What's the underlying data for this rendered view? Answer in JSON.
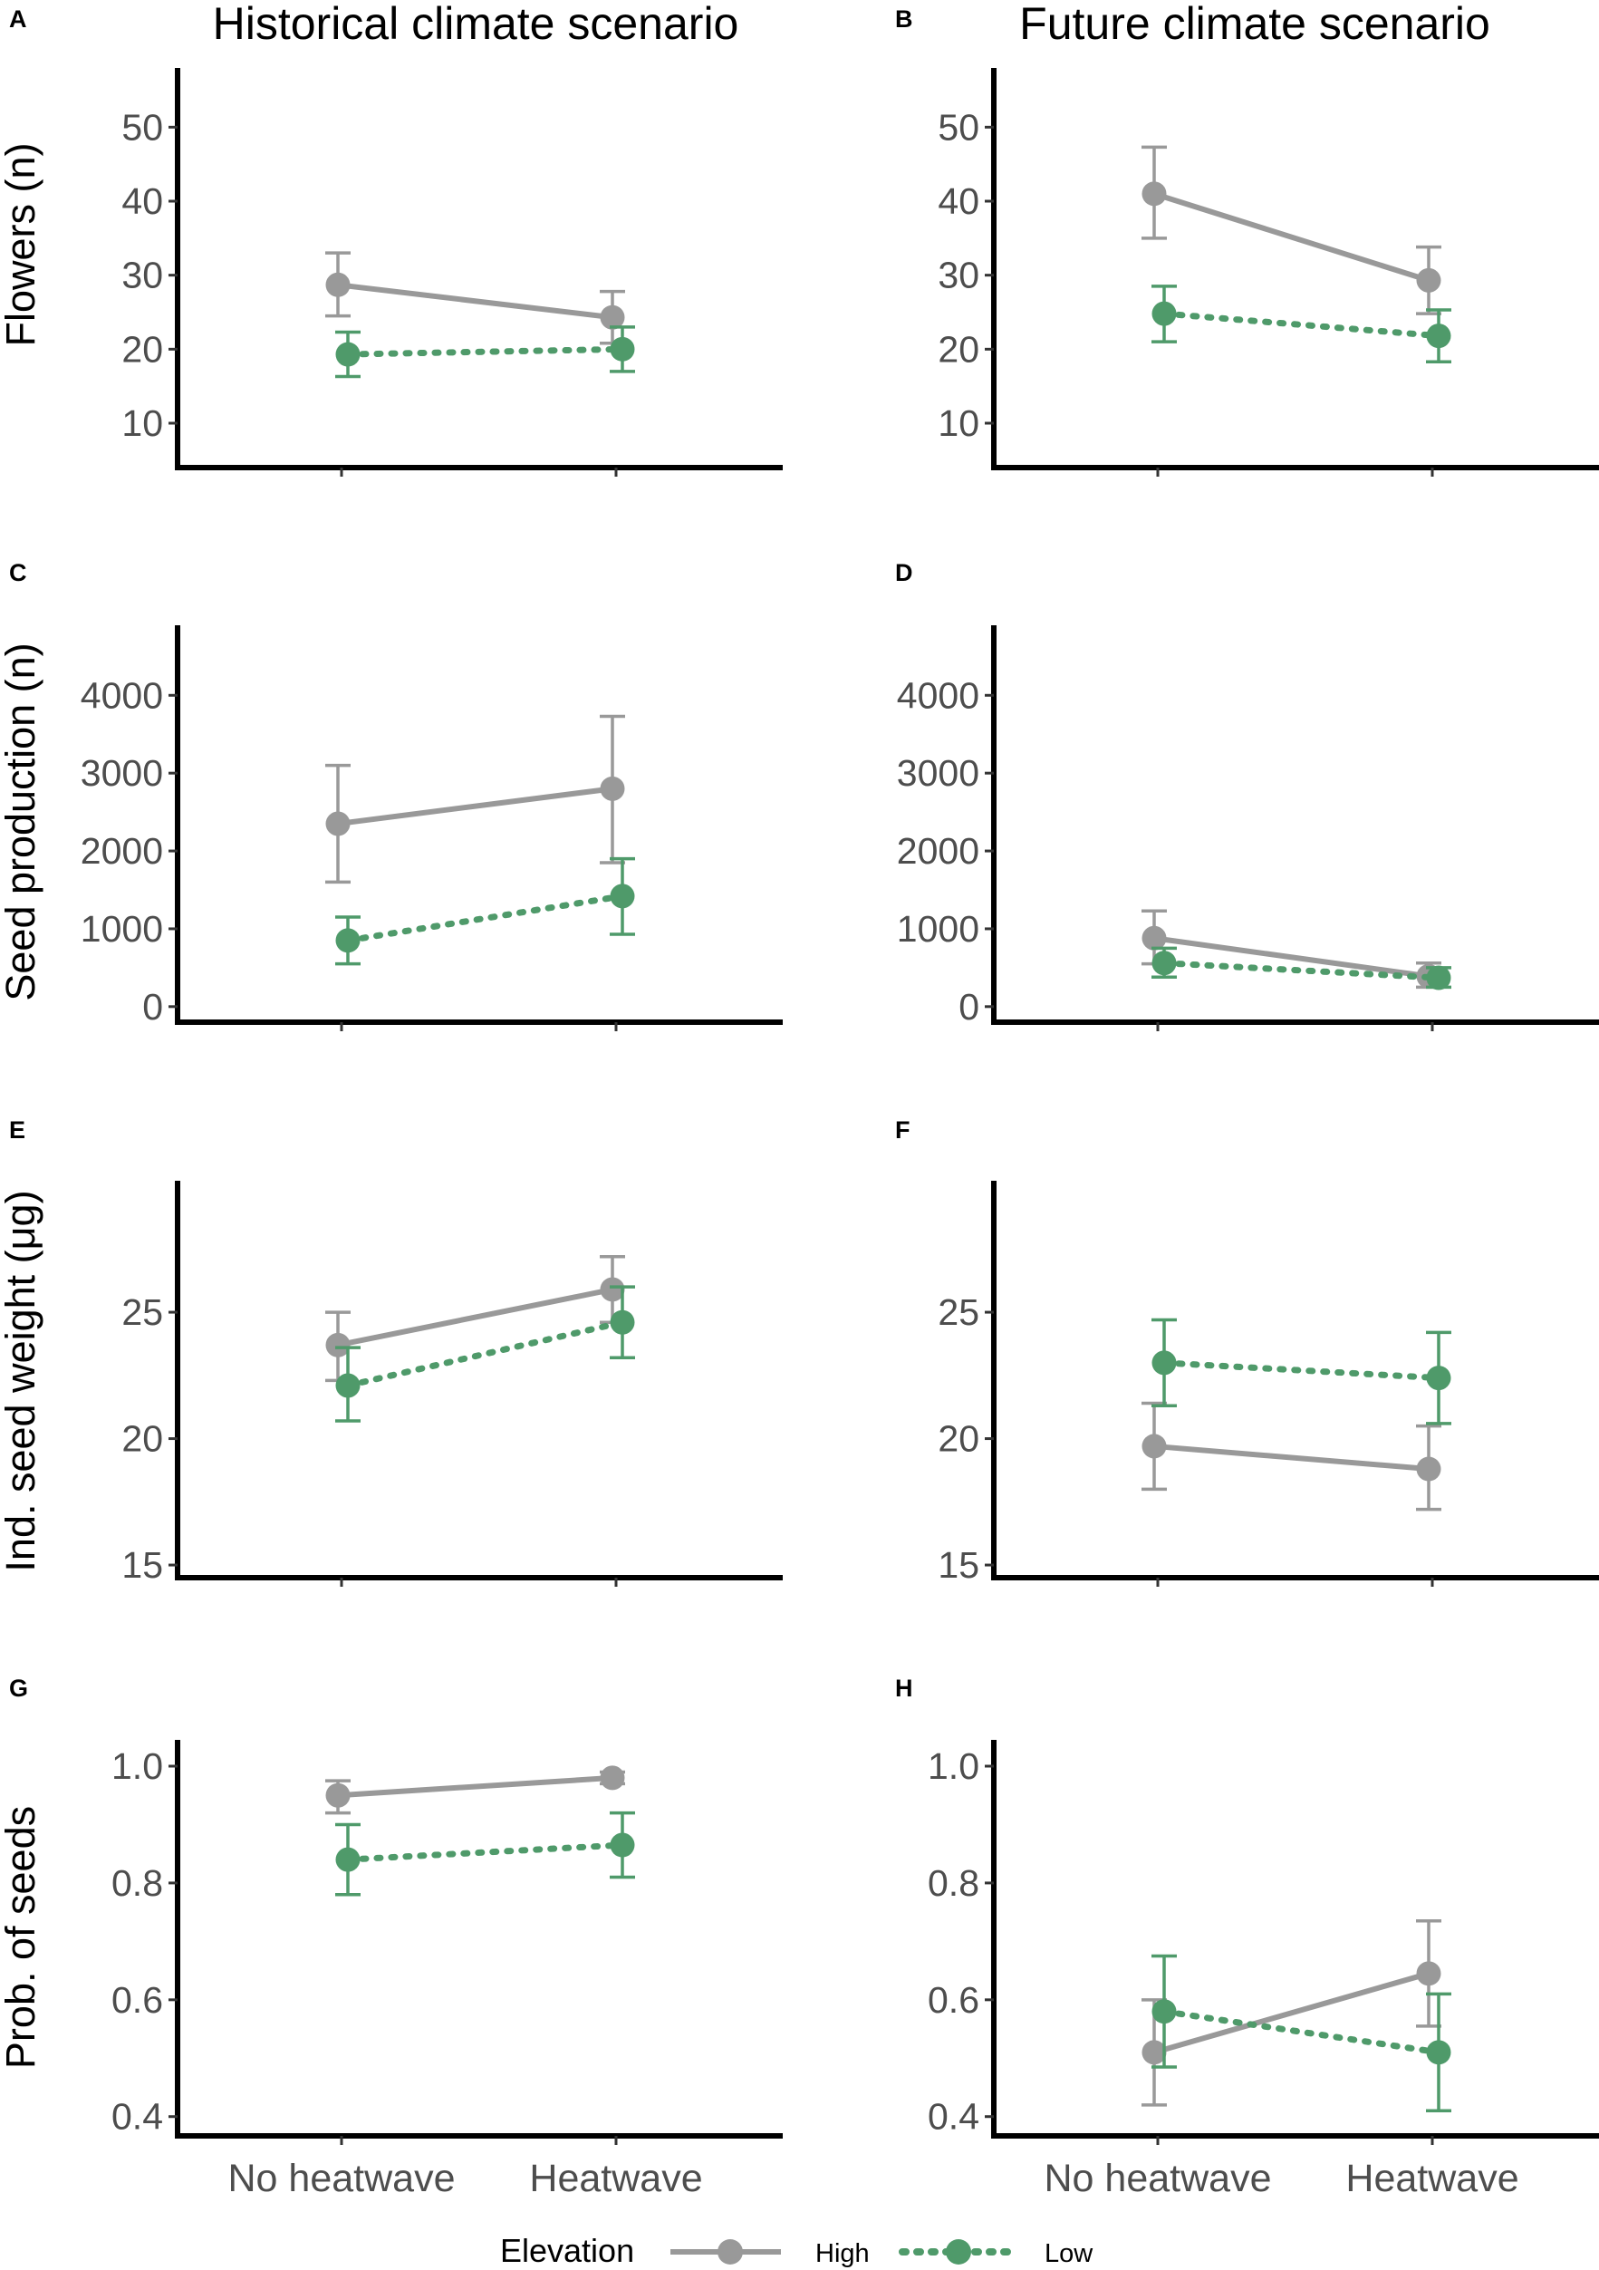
{
  "column_titles": [
    "Historical climate scenario",
    "Future climate scenario"
  ],
  "legend": {
    "title": "Elevation",
    "entries": [
      {
        "name": "High",
        "color": "#999999",
        "style": "solid"
      },
      {
        "name": "Low",
        "color": "#4f9a6a",
        "style": "dotted"
      }
    ]
  },
  "chart_data": [
    {
      "panel": "A",
      "type": "line",
      "title": "Historical climate scenario",
      "xlabel": "",
      "ylabel": "Flowers (n)",
      "categories": [
        "No heatwave",
        "Heatwave"
      ],
      "ylim": [
        4,
        58
      ],
      "yticks": [
        10,
        20,
        30,
        40,
        50
      ],
      "ytick_labels": [
        "10",
        "20",
        "30",
        "40",
        "50"
      ],
      "series": [
        {
          "name": "High",
          "values": [
            28.7,
            24.3
          ],
          "lower": [
            24.5,
            20.8
          ],
          "upper": [
            33.0,
            27.8
          ]
        },
        {
          "name": "Low",
          "values": [
            19.3,
            20.0
          ],
          "lower": [
            16.3,
            17.0
          ],
          "upper": [
            22.3,
            23.0
          ]
        }
      ]
    },
    {
      "panel": "B",
      "type": "line",
      "title": "Future climate scenario",
      "xlabel": "",
      "ylabel": "",
      "categories": [
        "No heatwave",
        "Heatwave"
      ],
      "ylim": [
        4,
        58
      ],
      "yticks": [
        10,
        20,
        30,
        40,
        50
      ],
      "ytick_labels": [
        "10",
        "20",
        "30",
        "40",
        "50"
      ],
      "series": [
        {
          "name": "High",
          "values": [
            41.0,
            29.3
          ],
          "lower": [
            35.0,
            24.8
          ],
          "upper": [
            47.3,
            33.8
          ]
        },
        {
          "name": "Low",
          "values": [
            24.8,
            21.8
          ],
          "lower": [
            21.0,
            18.3
          ],
          "upper": [
            28.5,
            25.3
          ]
        }
      ]
    },
    {
      "panel": "C",
      "type": "line",
      "title": "",
      "xlabel": "",
      "ylabel": "Seed production (n)",
      "categories": [
        "No heatwave",
        "Heatwave"
      ],
      "ylim": [
        -200,
        4900
      ],
      "yticks": [
        0,
        1000,
        2000,
        3000,
        4000
      ],
      "ytick_labels": [
        "0",
        "1000",
        "2000",
        "3000",
        "4000"
      ],
      "series": [
        {
          "name": "High",
          "values": [
            2350,
            2800
          ],
          "lower": [
            1600,
            1850
          ],
          "upper": [
            3100,
            3730
          ]
        },
        {
          "name": "Low",
          "values": [
            850,
            1420
          ],
          "lower": [
            550,
            930
          ],
          "upper": [
            1150,
            1900
          ]
        }
      ]
    },
    {
      "panel": "D",
      "type": "line",
      "title": "",
      "xlabel": "",
      "ylabel": "",
      "categories": [
        "No heatwave",
        "Heatwave"
      ],
      "ylim": [
        -200,
        4900
      ],
      "yticks": [
        0,
        1000,
        2000,
        3000,
        4000
      ],
      "ytick_labels": [
        "0",
        "1000",
        "2000",
        "3000",
        "4000"
      ],
      "series": [
        {
          "name": "High",
          "values": [
            880,
            390
          ],
          "lower": [
            550,
            250
          ],
          "upper": [
            1230,
            560
          ]
        },
        {
          "name": "Low",
          "values": [
            560,
            370
          ],
          "lower": [
            380,
            250
          ],
          "upper": [
            750,
            500
          ]
        }
      ]
    },
    {
      "panel": "E",
      "type": "line",
      "title": "",
      "xlabel": "",
      "ylabel": "Ind. seed weight (μg)",
      "categories": [
        "No heatwave",
        "Heatwave"
      ],
      "ylim": [
        14.5,
        30.2
      ],
      "yticks": [
        15,
        20,
        25
      ],
      "ytick_labels": [
        "15",
        "20",
        "25"
      ],
      "series": [
        {
          "name": "High",
          "values": [
            23.7,
            25.9
          ],
          "lower": [
            22.3,
            24.6
          ],
          "upper": [
            25.0,
            27.2
          ]
        },
        {
          "name": "Low",
          "values": [
            22.1,
            24.6
          ],
          "lower": [
            20.7,
            23.2
          ],
          "upper": [
            23.6,
            26.0
          ]
        }
      ]
    },
    {
      "panel": "F",
      "type": "line",
      "title": "",
      "xlabel": "",
      "ylabel": "",
      "categories": [
        "No heatwave",
        "Heatwave"
      ],
      "ylim": [
        14.5,
        30.2
      ],
      "yticks": [
        15,
        20,
        25
      ],
      "ytick_labels": [
        "15",
        "20",
        "25"
      ],
      "series": [
        {
          "name": "High",
          "values": [
            19.7,
            18.8
          ],
          "lower": [
            18.0,
            17.2
          ],
          "upper": [
            21.4,
            20.5
          ]
        },
        {
          "name": "Low",
          "values": [
            23.0,
            22.4
          ],
          "lower": [
            21.3,
            20.6
          ],
          "upper": [
            24.7,
            24.2
          ]
        }
      ]
    },
    {
      "panel": "G",
      "type": "line",
      "title": "",
      "xlabel": "",
      "ylabel": "Prob. of seeds",
      "categories": [
        "No heatwave",
        "Heatwave"
      ],
      "ylim": [
        0.367,
        1.045
      ],
      "yticks": [
        0.4,
        0.6,
        0.8,
        1.0
      ],
      "ytick_labels": [
        "0.4",
        "0.6",
        "0.8",
        "1.0"
      ],
      "series": [
        {
          "name": "High",
          "values": [
            0.95,
            0.98
          ],
          "lower": [
            0.92,
            0.97
          ],
          "upper": [
            0.975,
            0.99
          ]
        },
        {
          "name": "Low",
          "values": [
            0.84,
            0.865
          ],
          "lower": [
            0.78,
            0.81
          ],
          "upper": [
            0.9,
            0.92
          ]
        }
      ]
    },
    {
      "panel": "H",
      "type": "line",
      "title": "",
      "xlabel": "",
      "ylabel": "",
      "categories": [
        "No heatwave",
        "Heatwave"
      ],
      "ylim": [
        0.367,
        1.045
      ],
      "yticks": [
        0.4,
        0.6,
        0.8,
        1.0
      ],
      "ytick_labels": [
        "0.4",
        "0.6",
        "0.8",
        "1.0"
      ],
      "series": [
        {
          "name": "High",
          "values": [
            0.51,
            0.645
          ],
          "lower": [
            0.42,
            0.555
          ],
          "upper": [
            0.6,
            0.735
          ]
        },
        {
          "name": "Low",
          "values": [
            0.58,
            0.51
          ],
          "lower": [
            0.485,
            0.41
          ],
          "upper": [
            0.675,
            0.61
          ]
        }
      ]
    }
  ]
}
